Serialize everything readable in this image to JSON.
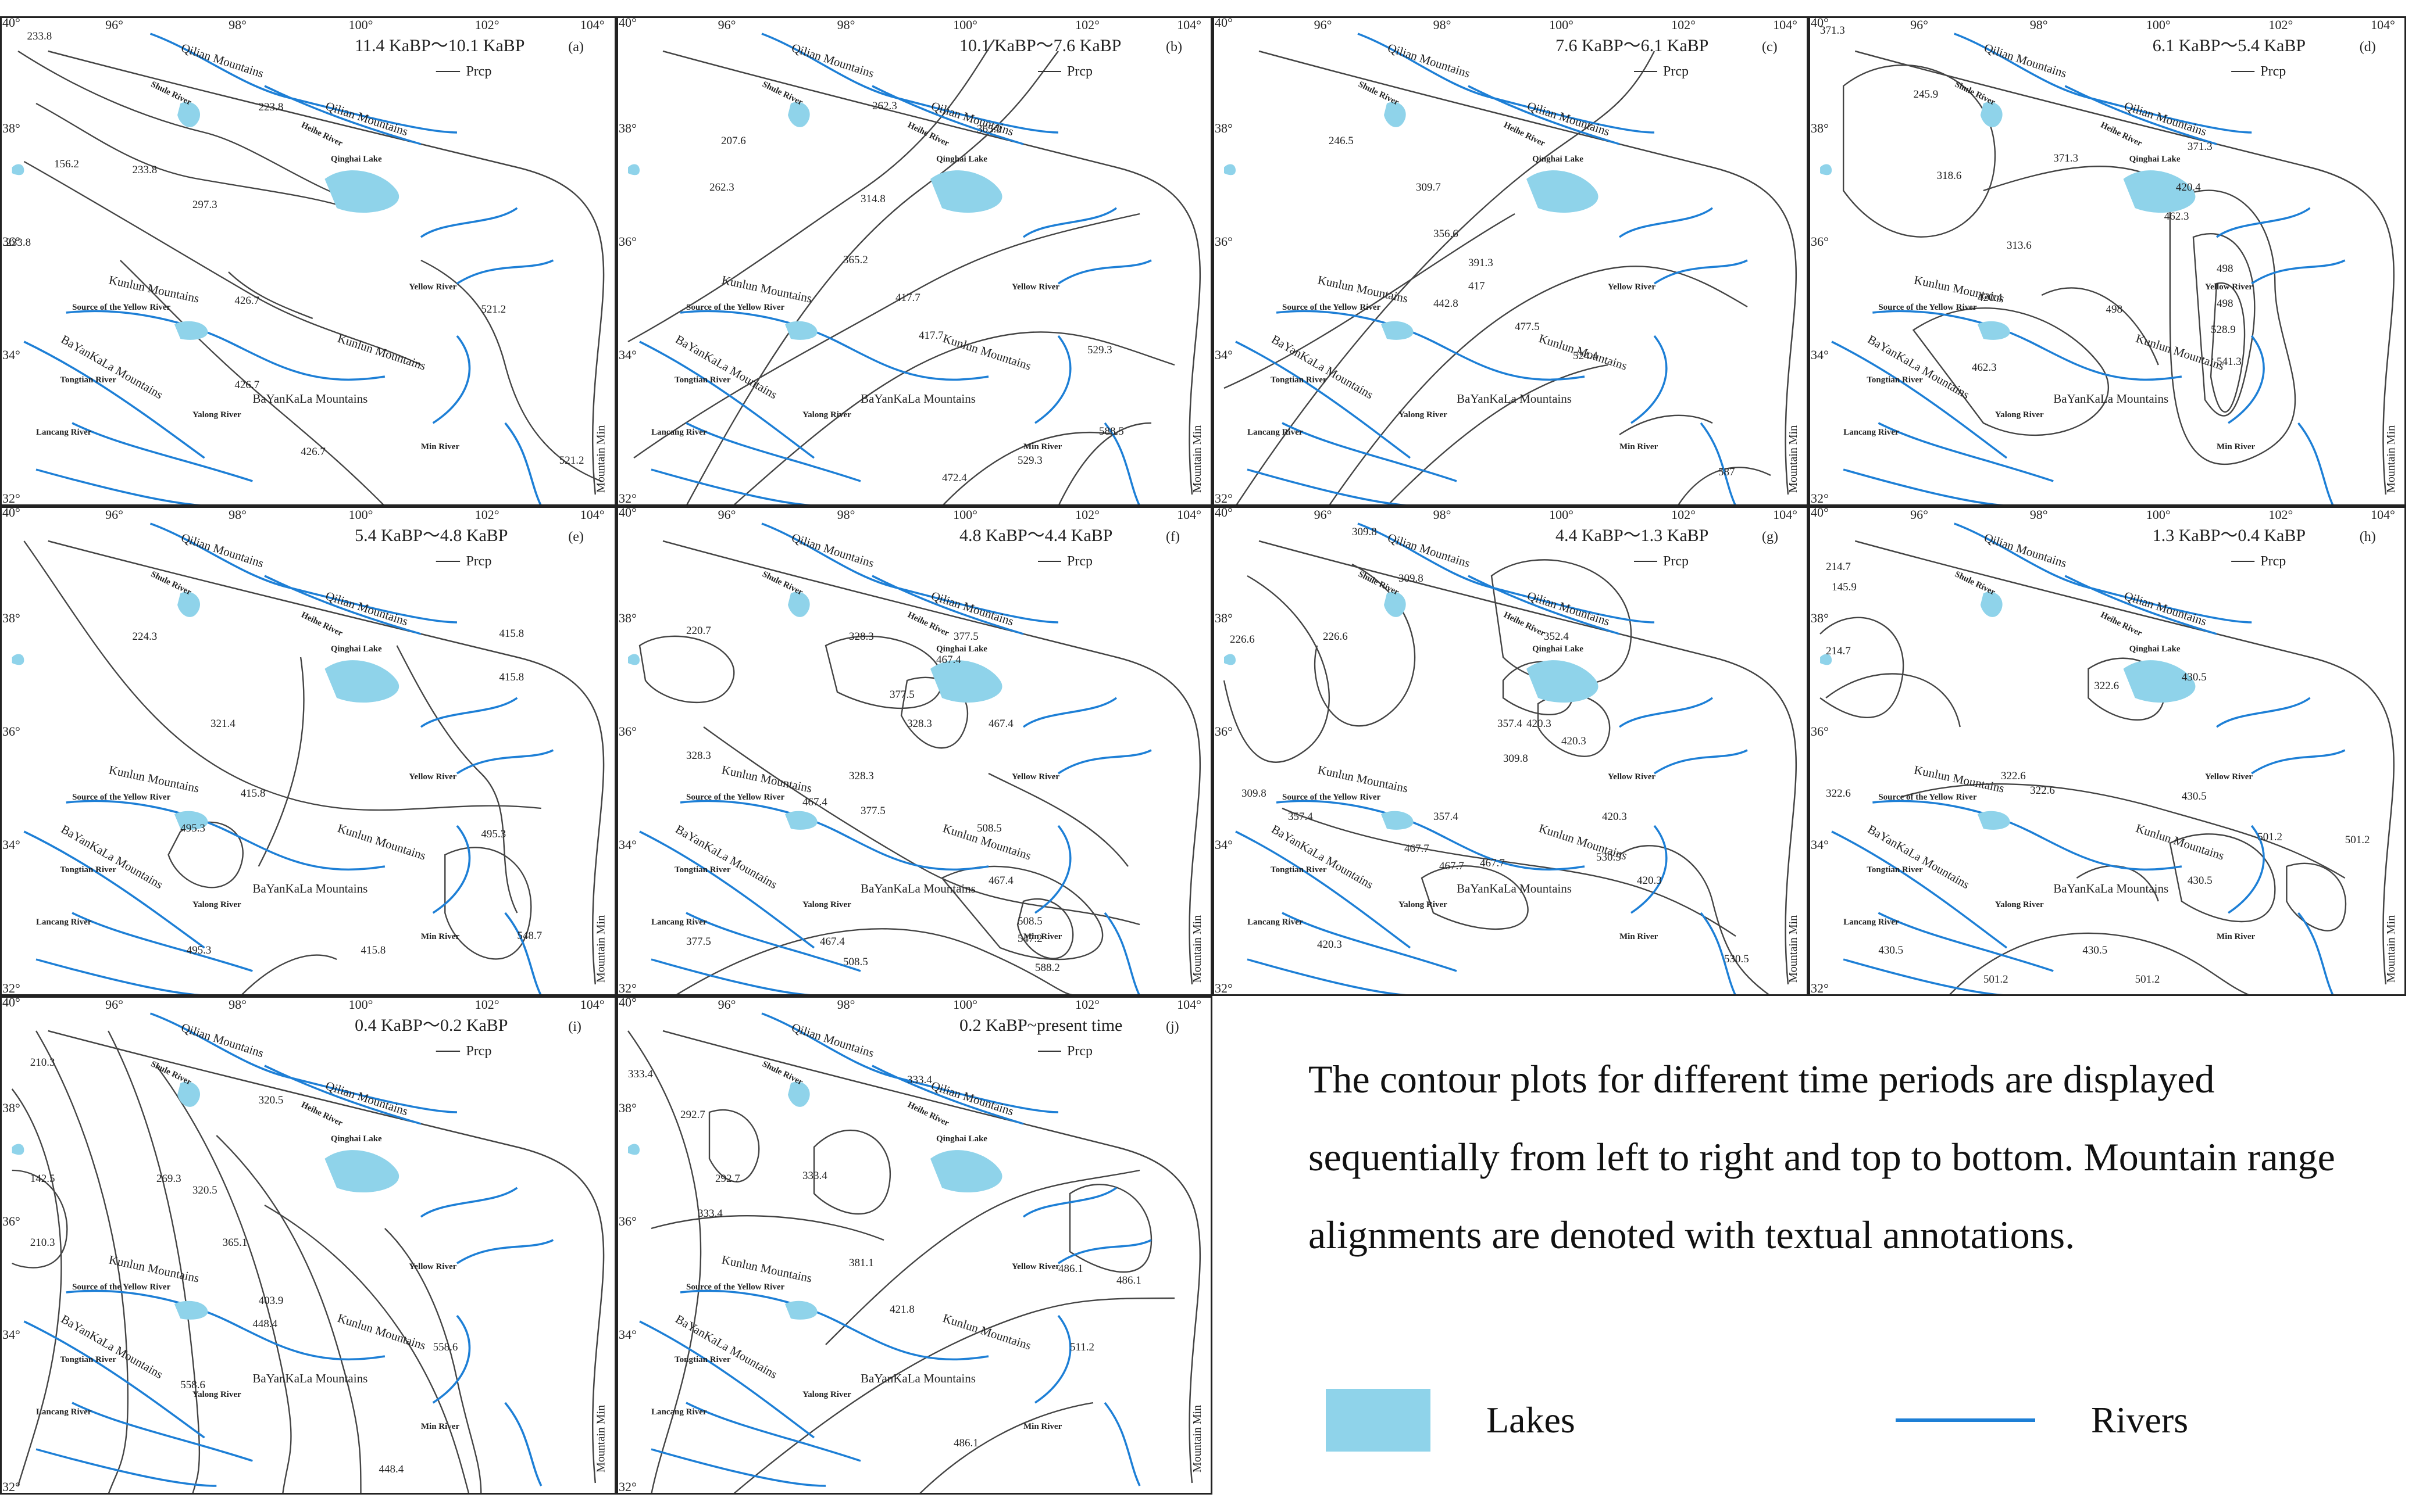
{
  "colors": {
    "lake": "#8fd3ea",
    "river": "#1d7fd6",
    "contour": "#444444",
    "frame": "#222222"
  },
  "axis_ticks": {
    "lon": [
      "96°",
      "98°",
      "100°",
      "102°",
      "104°"
    ],
    "lat": [
      "40°",
      "38°",
      "36°",
      "34°",
      "32°"
    ]
  },
  "map_labels": {
    "qilian1": "Qilian Mountains",
    "qilian2": "Qilian Mountains",
    "shule": "Shule River",
    "heihe": "Heihe River",
    "qinghai_lake": "Qinghai Lake",
    "kunlun1": "Kunlun Mountains",
    "kunlun2": "Kunlun Mountains",
    "source": "Source of the Yellow River",
    "yellow_river": "Yellow River",
    "bayankala1": "BaYanKaLa Mountains",
    "bayankala2": "BaYanKaLa Mountains",
    "tongtian": "Tongtian River",
    "yalong": "Yalong River",
    "lancang": "Lancang River",
    "min_river": "Min River",
    "mountain_min": "Mountain Min",
    "legend_prcp": "Prcp"
  },
  "panels": [
    {
      "period": "11.4 KaBP～10.1 KaBP",
      "tag": "(a)",
      "values": [
        "233.8",
        "223.8",
        "156.2",
        "233.8",
        "297.3",
        "233.8",
        "426.7",
        "426.7",
        "521.2",
        "426.7",
        "521.2"
      ]
    },
    {
      "period": "10.1 KaBP～7.6 KaBP",
      "tag": "(b)",
      "values": [
        "262.3",
        "365.2",
        "207.6",
        "262.3",
        "314.8",
        "365.2",
        "417.7",
        "417.7",
        "529.3",
        "588.5",
        "529.3",
        "472.4"
      ]
    },
    {
      "period": "7.6 KaBP～6.1 KaBP",
      "tag": "(c)",
      "values": [
        "246.5",
        "309.7",
        "356.6",
        "391.3",
        "417",
        "442.8",
        "477.5",
        "524.4",
        "587"
      ]
    },
    {
      "period": "6.1 KaBP～5.4 KaBP",
      "tag": "(d)",
      "values": [
        "371.3",
        "245.9",
        "318.6",
        "371.3",
        "371.3",
        "420.4",
        "462.3",
        "313.6",
        "498",
        "498",
        "420.4",
        "498",
        "528.9",
        "462.3",
        "541.3"
      ]
    },
    {
      "period": "5.4 KaBP～4.8 KaBP",
      "tag": "(e)",
      "values": [
        "224.3",
        "415.8",
        "415.8",
        "321.4",
        "415.8",
        "495.3",
        "495.3",
        "548.7",
        "495.3",
        "415.8"
      ]
    },
    {
      "period": "4.8 KaBP～4.4 KaBP",
      "tag": "(f)",
      "values": [
        "220.7",
        "328.3",
        "377.5",
        "467.4",
        "377.5",
        "328.3",
        "467.4",
        "328.3",
        "328.3",
        "377.5",
        "467.4",
        "508.5",
        "467.4",
        "508.5",
        "547.2",
        "588.2",
        "377.5",
        "508.5",
        "467.4"
      ]
    },
    {
      "period": "4.4 KaBP～1.3 KaBP",
      "tag": "(g)",
      "values": [
        "309.8",
        "309.8",
        "226.6",
        "226.6",
        "352.4",
        "357.4",
        "420.3",
        "420.3",
        "309.8",
        "309.8",
        "357.4",
        "357.4",
        "420.3",
        "420.3",
        "467.7",
        "530.5",
        "467.7",
        "467.7",
        "420.3",
        "530.5"
      ]
    },
    {
      "period": "1.3 KaBP～0.4 KaBP",
      "tag": "(h)",
      "values": [
        "214.7",
        "145.9",
        "214.7",
        "322.6",
        "430.5",
        "322.6",
        "322.6",
        "430.5",
        "430.5",
        "501.2",
        "501.2",
        "322.6",
        "430.5",
        "430.5",
        "501.2",
        "501.2"
      ]
    },
    {
      "period": "0.4 KaBP～0.2 KaBP",
      "tag": "(i)",
      "values": [
        "210.3",
        "320.5",
        "142.5",
        "269.3",
        "320.5",
        "210.3",
        "365.1",
        "403.9",
        "448.4",
        "558.6",
        "558.6",
        "448.4"
      ]
    },
    {
      "period": "0.2 KaBP~present time",
      "tag": "(j)",
      "values": [
        "333.4",
        "292.7",
        "333.4",
        "292.7",
        "333.4",
        "333.4",
        "381.1",
        "421.8",
        "486.1",
        "486.1",
        "511.2",
        "486.1"
      ]
    }
  ],
  "legend": {
    "description": "The contour plots for different time periods are displayed sequentially from left to right and top to bottom. Mountain range alignments are denoted with textual annotations.",
    "lakes_label": "Lakes",
    "rivers_label": "Rivers"
  }
}
